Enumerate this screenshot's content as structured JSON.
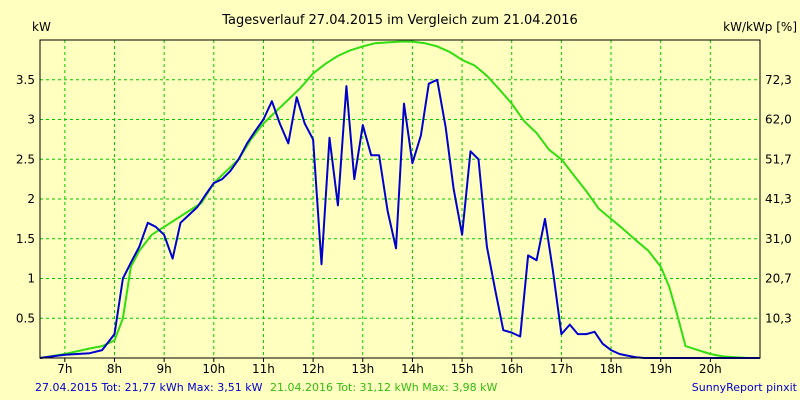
{
  "colors": {
    "background": "#ffffc0",
    "grid": "#00cc00",
    "series_2015": "#0000cc",
    "series_2016": "#33dd11",
    "axis": "#000000"
  },
  "footer": {
    "series_2015": "27.04.2015 Tot: 21,77 kWh Max: 3,51 kW",
    "series_2016": "21.04.2016 Tot: 31,12 kWh Max: 3,98 kW",
    "brand": "SunnyReport pinxit"
  },
  "chart_data": {
    "type": "line",
    "title": "Tagesverlauf 27.04.2015 im Vergleich zum 21.04.2016",
    "ylabel": "kW",
    "ylabel_right": "kW/kWp [%]",
    "xlim": [
      6.5,
      21.0
    ],
    "ylim": [
      0,
      4.0
    ],
    "x_ticks": [
      7,
      8,
      9,
      10,
      11,
      12,
      13,
      14,
      15,
      16,
      17,
      18,
      19,
      20
    ],
    "x_tick_labels": [
      "7h",
      "8h",
      "9h",
      "10h",
      "11h",
      "12h",
      "13h",
      "14h",
      "15h",
      "16h",
      "17h",
      "18h",
      "19h",
      "20h"
    ],
    "y_ticks": [
      0.5,
      1,
      1.5,
      2,
      2.5,
      3,
      3.5
    ],
    "y_tick_labels": [
      "0.5",
      "1",
      "1.5",
      "2",
      "2.5",
      "3",
      "3.5"
    ],
    "y_right_ticks": [
      "10,3",
      "20,7",
      "31,0",
      "41,3",
      "51,7",
      "62,0",
      "72,3"
    ],
    "grid": true,
    "series": [
      {
        "name": "27.04.2015",
        "color": "#0000cc",
        "x": [
          6.5,
          6.75,
          7.0,
          7.25,
          7.5,
          7.75,
          8.0,
          8.17,
          8.33,
          8.5,
          8.67,
          8.83,
          9.0,
          9.17,
          9.33,
          9.5,
          9.67,
          9.83,
          10.0,
          10.17,
          10.33,
          10.5,
          10.67,
          10.83,
          11.0,
          11.17,
          11.33,
          11.5,
          11.67,
          11.83,
          12.0,
          12.17,
          12.33,
          12.5,
          12.67,
          12.83,
          13.0,
          13.17,
          13.33,
          13.5,
          13.67,
          13.83,
          14.0,
          14.17,
          14.33,
          14.5,
          14.67,
          14.83,
          15.0,
          15.17,
          15.33,
          15.5,
          15.67,
          15.83,
          16.0,
          16.17,
          16.33,
          16.5,
          16.67,
          16.83,
          17.0,
          17.17,
          17.33,
          17.5,
          17.67,
          17.83,
          18.0,
          18.17,
          18.33,
          18.5,
          18.67,
          18.83,
          19.0,
          19.17,
          19.33,
          19.5,
          19.67,
          19.83,
          20.0,
          20.25,
          20.5,
          20.75,
          21.0
        ],
        "values": [
          0.0,
          0.02,
          0.04,
          0.05,
          0.06,
          0.1,
          0.3,
          1.0,
          1.2,
          1.4,
          1.7,
          1.65,
          1.55,
          1.25,
          1.7,
          1.8,
          1.9,
          2.05,
          2.2,
          2.25,
          2.35,
          2.5,
          2.7,
          2.85,
          3.0,
          3.23,
          2.95,
          2.7,
          3.28,
          2.95,
          2.75,
          1.18,
          2.77,
          1.92,
          3.42,
          2.25,
          2.93,
          2.55,
          2.55,
          1.85,
          1.38,
          3.2,
          2.45,
          2.8,
          3.45,
          3.5,
          2.9,
          2.13,
          1.55,
          2.6,
          2.5,
          1.4,
          0.85,
          0.35,
          0.32,
          0.27,
          1.29,
          1.23,
          1.75,
          1.1,
          0.3,
          0.42,
          0.3,
          0.3,
          0.33,
          0.18,
          0.1,
          0.05,
          0.03,
          0.01,
          0.0,
          0.0,
          0.0,
          0.0,
          0.0,
          0.0,
          0.0,
          0.0,
          0.0,
          0.0,
          0.0,
          0.0,
          0.0
        ]
      },
      {
        "name": "21.04.2016",
        "color": "#33dd11",
        "x": [
          6.5,
          7.0,
          7.5,
          7.75,
          8.0,
          8.17,
          8.33,
          8.5,
          8.75,
          9.0,
          9.25,
          9.5,
          9.75,
          10.0,
          10.25,
          10.5,
          10.75,
          11.0,
          11.25,
          11.5,
          11.75,
          12.0,
          12.25,
          12.5,
          12.75,
          13.0,
          13.25,
          13.5,
          13.75,
          14.0,
          14.25,
          14.5,
          14.75,
          15.0,
          15.25,
          15.5,
          15.75,
          16.0,
          16.25,
          16.5,
          16.75,
          17.0,
          17.25,
          17.5,
          17.75,
          18.0,
          18.25,
          18.5,
          18.75,
          19.0,
          19.17,
          19.33,
          19.5,
          19.75,
          20.0,
          20.25,
          20.5,
          20.75,
          21.0
        ],
        "values": [
          0.0,
          0.05,
          0.12,
          0.15,
          0.22,
          0.5,
          1.15,
          1.35,
          1.55,
          1.65,
          1.75,
          1.85,
          1.95,
          2.2,
          2.35,
          2.5,
          2.75,
          2.95,
          3.1,
          3.25,
          3.4,
          3.58,
          3.7,
          3.8,
          3.87,
          3.92,
          3.96,
          3.97,
          3.98,
          3.98,
          3.96,
          3.92,
          3.85,
          3.75,
          3.68,
          3.55,
          3.38,
          3.2,
          2.98,
          2.83,
          2.62,
          2.5,
          2.3,
          2.1,
          1.88,
          1.75,
          1.62,
          1.48,
          1.35,
          1.15,
          0.9,
          0.55,
          0.15,
          0.1,
          0.05,
          0.02,
          0.01,
          0.0,
          0.0
        ]
      }
    ]
  }
}
